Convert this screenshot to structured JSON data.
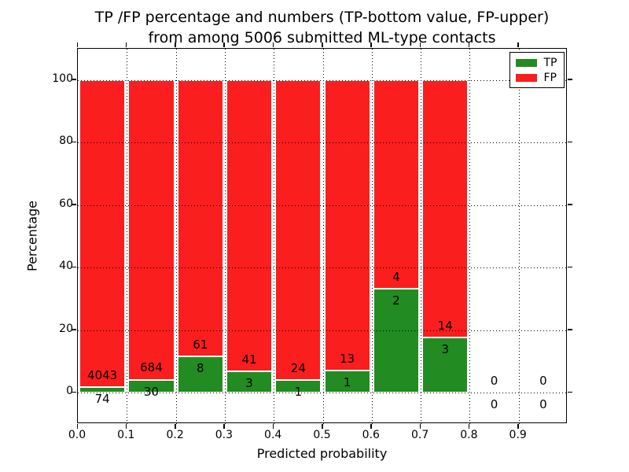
{
  "title": {
    "line1": "TP /FP percentage and numbers (TP-bottom value, FP-upper)",
    "line2": "from among 5006 submitted ML-type contacts"
  },
  "axes": {
    "xlabel": "Predicted probability",
    "ylabel": "Percentage",
    "x_tick_labels": [
      "0.0",
      "0.1",
      "0.2",
      "0.3",
      "0.4",
      "0.5",
      "0.6",
      "0.7",
      "0.8",
      "0.9"
    ],
    "y_tick_labels": [
      "0",
      "20",
      "40",
      "60",
      "80",
      "100"
    ]
  },
  "chart_data": {
    "type": "bar",
    "stacked": true,
    "title": "TP /FP percentage and numbers (TP-bottom value, FP-upper) from among 5006 submitted ML-type contacts",
    "xlabel": "Predicted probability",
    "ylabel": "Percentage",
    "total_submitted_contacts": 5006,
    "bin_edges": [
      0.0,
      0.1,
      0.2,
      0.3,
      0.4,
      0.5,
      0.6,
      0.7,
      0.8,
      0.9,
      1.0
    ],
    "x_ticks": [
      0.0,
      0.1,
      0.2,
      0.3,
      0.4,
      0.5,
      0.6,
      0.7,
      0.8,
      0.9
    ],
    "y_ticks": [
      0,
      20,
      40,
      60,
      80,
      100
    ],
    "xlim": [
      0.0,
      1.0
    ],
    "ylim": [
      -10,
      110
    ],
    "grid": "dotted",
    "legend_position": "upper right",
    "series": [
      {
        "name": "TP",
        "color": "#228b22",
        "counts": [
          74,
          30,
          8,
          3,
          1,
          1,
          2,
          3,
          0,
          0
        ],
        "pct": [
          1.8,
          4.2,
          11.59,
          6.82,
          4.0,
          7.14,
          33.33,
          17.65,
          0,
          0
        ]
      },
      {
        "name": "FP",
        "color": "#fa1e1e",
        "counts": [
          4043,
          684,
          61,
          41,
          24,
          13,
          4,
          14,
          0,
          0
        ],
        "pct": [
          98.2,
          95.8,
          88.41,
          93.18,
          96.0,
          92.86,
          66.67,
          82.35,
          0,
          0
        ]
      }
    ]
  }
}
